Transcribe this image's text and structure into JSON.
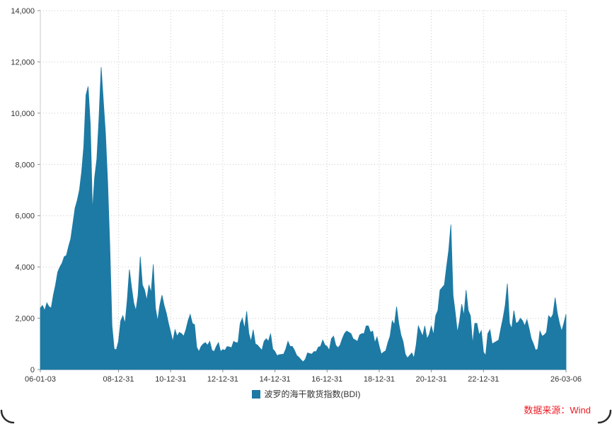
{
  "colors": {
    "area": "#1d7aa4",
    "grid": "#c9c9c9",
    "axis": "#8c8c8c",
    "text": "#333333",
    "source_red": "#ed1c24",
    "corner_edge": "#2c2c2c"
  },
  "footer": {
    "source": "数据来源：Wind"
  },
  "chart_data": {
    "type": "area",
    "title": "",
    "legend": "波罗的海干散货指数(BDI)",
    "legend_position": "bottom-center",
    "grid": "dotted",
    "x_start": "2006-01",
    "x_freq": "monthly",
    "x_end": "2026-03",
    "ylim": [
      0,
      14000
    ],
    "yticks": [
      {
        "value": 0,
        "label": "0"
      },
      {
        "value": 2000,
        "label": "2,000"
      },
      {
        "value": 4000,
        "label": "4,000"
      },
      {
        "value": 6000,
        "label": "6,000"
      },
      {
        "value": 8000,
        "label": "8,000"
      },
      {
        "value": 10000,
        "label": "10,000"
      },
      {
        "value": 12000,
        "label": "12,000"
      },
      {
        "value": 14000,
        "label": "14,000"
      }
    ],
    "xticks": [
      {
        "index": 0,
        "label": "06-01-03"
      },
      {
        "index": 36,
        "label": "08-12-31"
      },
      {
        "index": 60,
        "label": "10-12-31"
      },
      {
        "index": 84,
        "label": "12-12-31"
      },
      {
        "index": 108,
        "label": "14-12-31"
      },
      {
        "index": 132,
        "label": "16-12-31"
      },
      {
        "index": 156,
        "label": "18-12-31"
      },
      {
        "index": 180,
        "label": "20-12-31"
      },
      {
        "index": 204,
        "label": "22-12-31"
      },
      {
        "index": 242,
        "label": "26-03-06"
      }
    ],
    "values": [
      2400,
      2500,
      2300,
      2600,
      2450,
      2400,
      2900,
      3300,
      3800,
      4000,
      4150,
      4400,
      4450,
      4800,
      5100,
      5700,
      6300,
      6600,
      7000,
      7700,
      8700,
      10700,
      11039,
      9600,
      6200,
      7500,
      8200,
      9800,
      11793,
      10500,
      9200,
      7300,
      4800,
      1700,
      800,
      774,
      1100,
      1900,
      2100,
      1800,
      2700,
      3900,
      3200,
      2600,
      2300,
      2900,
      4400,
      3300,
      3100,
      2700,
      3300,
      3000,
      4100,
      2400,
      1900,
      2500,
      2900,
      2500,
      2200,
      1800,
      1450,
      1100,
      1550,
      1300,
      1450,
      1400,
      1300,
      1550,
      1900,
      2150,
      1800,
      1750,
      870,
      700,
      900,
      1000,
      1050,
      950,
      1100,
      750,
      700,
      900,
      1050,
      700,
      780,
      750,
      900,
      880,
      850,
      1100,
      1050,
      1050,
      1800,
      2000,
      1600,
      2270,
      1400,
      1100,
      1550,
      1000,
      950,
      850,
      750,
      1100,
      1200,
      1100,
      1400,
      800,
      700,
      540,
      580,
      590,
      600,
      800,
      1100,
      900,
      900,
      750,
      550,
      480,
      380,
      300,
      400,
      650,
      620,
      600,
      700,
      700,
      875,
      900,
      1150,
      960,
      900,
      750,
      1200,
      1300,
      950,
      850,
      950,
      1200,
      1400,
      1500,
      1450,
      1400,
      1200,
      1150,
      1100,
      1350,
      1400,
      1400,
      1700,
      1700,
      1450,
      1500,
      1050,
      1270,
      900,
      600,
      680,
      730,
      1050,
      1300,
      1900,
      1750,
      2450,
      1800,
      1350,
      1090,
      600,
      450,
      550,
      650,
      450,
      950,
      1700,
      1500,
      1300,
      1700,
      1200,
      1360,
      1700,
      1350,
      2100,
      2300,
      3100,
      3200,
      3300,
      4000,
      4650,
      5650,
      2900,
      2220,
      1450,
      1900,
      2550,
      2100,
      3100,
      2300,
      2100,
      1000,
      1800,
      1800,
      1350,
      1515,
      680,
      550,
      1400,
      1550,
      1000,
      1050,
      1100,
      1150,
      1600,
      2000,
      2500,
      3346,
      1800,
      1600,
      2300,
      1800,
      1850,
      2000,
      1900,
      1700,
      1950,
      1600,
      1200,
      1000,
      750,
      800,
      1500,
      1300,
      1350,
      1450,
      2100,
      2000,
      2150,
      2800,
      2200,
      1800,
      1500,
      1800,
      2150
    ]
  }
}
